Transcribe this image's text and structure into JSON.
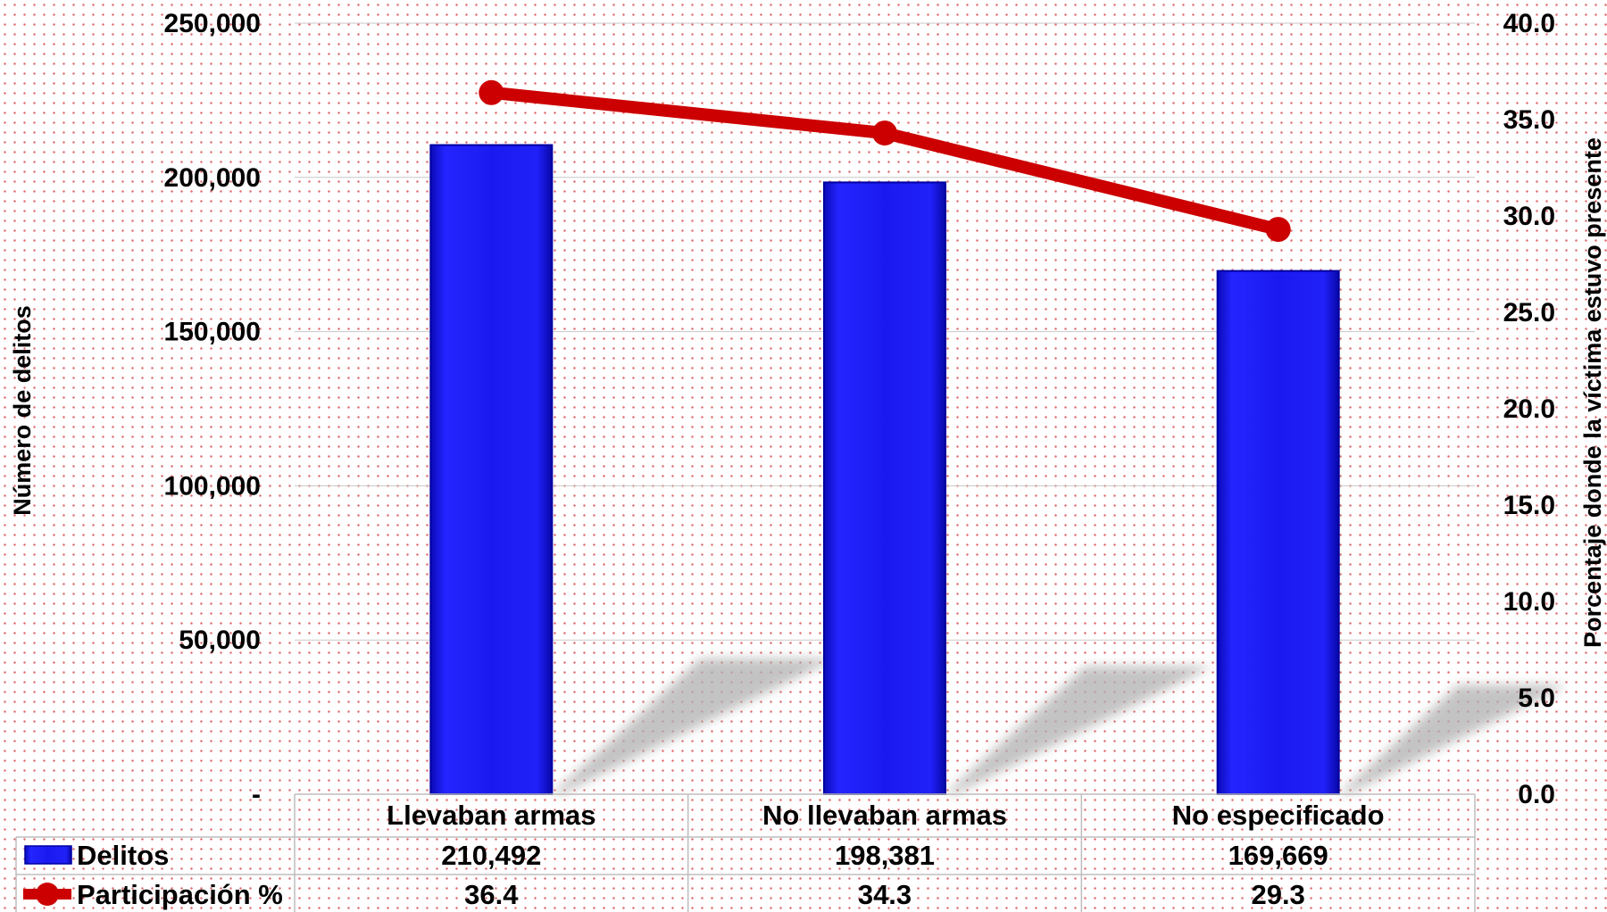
{
  "chart_data": {
    "type": "bar",
    "categories": [
      "Llevaban armas",
      "No llevaban armas",
      "No especificado"
    ],
    "series": [
      {
        "name": "Delitos",
        "axis": "left",
        "type": "bar",
        "values": [
          210492,
          198381,
          169669
        ],
        "labels": [
          "210,492",
          "198,381",
          "169,669"
        ],
        "color": "#1a1af0"
      },
      {
        "name": "Participación %",
        "axis": "right",
        "type": "line",
        "values": [
          36.4,
          34.3,
          29.3
        ],
        "labels": [
          "36.4",
          "34.3",
          "29.3"
        ],
        "color": "#cc0000"
      }
    ],
    "ylabel": "Número de delitos",
    "ylabel_right": "Porcentaje donde la víctima estuvo presente",
    "ylim": [
      0,
      250000
    ],
    "ylim_right": [
      0,
      40
    ],
    "yticks_left": [
      "-",
      "50,000",
      "100,000",
      "150,000",
      "200,000",
      "250,000"
    ],
    "yticks_right": [
      "0.0",
      "5.0",
      "10.0",
      "15.0",
      "20.0",
      "25.0",
      "30.0",
      "35.0",
      "40.0"
    ],
    "grid": true,
    "data_table": true
  }
}
